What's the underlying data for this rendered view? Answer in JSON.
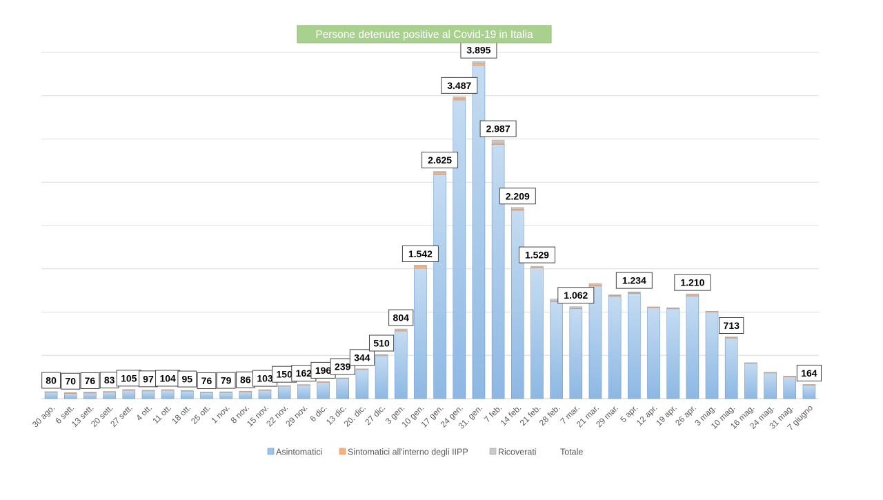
{
  "chart_data": {
    "type": "bar",
    "stacked": true,
    "title": "Persone detenute  positive al Covid-19 in Italia",
    "title_bg": "#a9d18e",
    "grid": true,
    "legend_position": "bottom",
    "ylim": [
      0,
      4000
    ],
    "categories": [
      "30 ago.",
      "6 sett.",
      "13 sett.",
      "20 sett.",
      "27 sett.",
      "4 ott.",
      "11 ott.",
      "18 ott.",
      "25 ott.",
      "1 nov.",
      "8 nov.",
      "15 nov.",
      "22 nov.",
      "29 nov.",
      "6 dic.",
      "13 dic.",
      "20. dic.",
      "27 dic.",
      "3 gen.",
      "10 gen.",
      "17 gen.",
      "24 gen.",
      "31. gen.",
      "7 feb.",
      "14 feb.",
      "21 feb.",
      "28 feb.",
      "7 mar.",
      "21 mar.",
      "29 mar.",
      "5 apr.",
      "12 apr.",
      "19 apr.",
      "26 apr.",
      "3 mag.",
      "10 mag.",
      "16 mag.",
      "24 mag.",
      "31 mag.",
      "7 giugno"
    ],
    "series": [
      {
        "name": "Asintomatici",
        "color": "#9dc3e6",
        "values": [
          78,
          62,
          68,
          80,
          98,
          90,
          98,
          88,
          74,
          72,
          80,
          98,
          148,
          160,
          190,
          236,
          338,
          495,
          780,
          1505,
          2585,
          3450,
          3850,
          2935,
          2175,
          1515,
          1120,
          1040,
          1300,
          1180,
          1215,
          1050,
          1040,
          1185,
          1005,
          700,
          410,
          300,
          255,
          160
        ]
      },
      {
        "name": "Sintomatici all'interno degli IIPP",
        "color": "#f4b183",
        "values": [
          1,
          3,
          2,
          1,
          3,
          4,
          3,
          3,
          1,
          3,
          3,
          2,
          1,
          1,
          3,
          2,
          3,
          10,
          14,
          27,
          25,
          22,
          20,
          20,
          13,
          3,
          7,
          4,
          14,
          12,
          9,
          5,
          3,
          11,
          1,
          5,
          2,
          1,
          1,
          1
        ]
      },
      {
        "name": "Ricoverati",
        "color": "#c9c9c9",
        "values": [
          1,
          5,
          6,
          2,
          4,
          3,
          3,
          4,
          1,
          4,
          3,
          3,
          1,
          1,
          3,
          1,
          3,
          5,
          10,
          10,
          15,
          15,
          25,
          32,
          21,
          11,
          23,
          18,
          16,
          8,
          10,
          5,
          7,
          14,
          4,
          8,
          3,
          4,
          4,
          3
        ]
      }
    ],
    "legend_extra": "Totale",
    "totals": [
      80,
      70,
      76,
      83,
      105,
      97,
      104,
      95,
      76,
      79,
      86,
      103,
      150,
      162,
      196,
      239,
      344,
      510,
      804,
      1542,
      2625,
      3487,
      3895,
      2987,
      2209,
      1529,
      1150,
      1062,
      1330,
      1200,
      1234,
      1060,
      1050,
      1210,
      1010,
      713,
      415,
      305,
      260,
      164
    ],
    "data_labels": [
      "80",
      "70",
      "76",
      "83",
      "105",
      "97",
      "104",
      "95",
      "76",
      "79",
      "86",
      "103",
      "150",
      "162",
      "196",
      "239",
      "344",
      "510",
      "804",
      "1.542",
      "2.625",
      "3.487",
      "3.895",
      "2.987",
      "2.209",
      "1.529",
      "",
      "1.062",
      "",
      "",
      "1.234",
      "",
      "",
      "1.210",
      "",
      "713",
      "",
      "",
      "",
      "164"
    ]
  }
}
